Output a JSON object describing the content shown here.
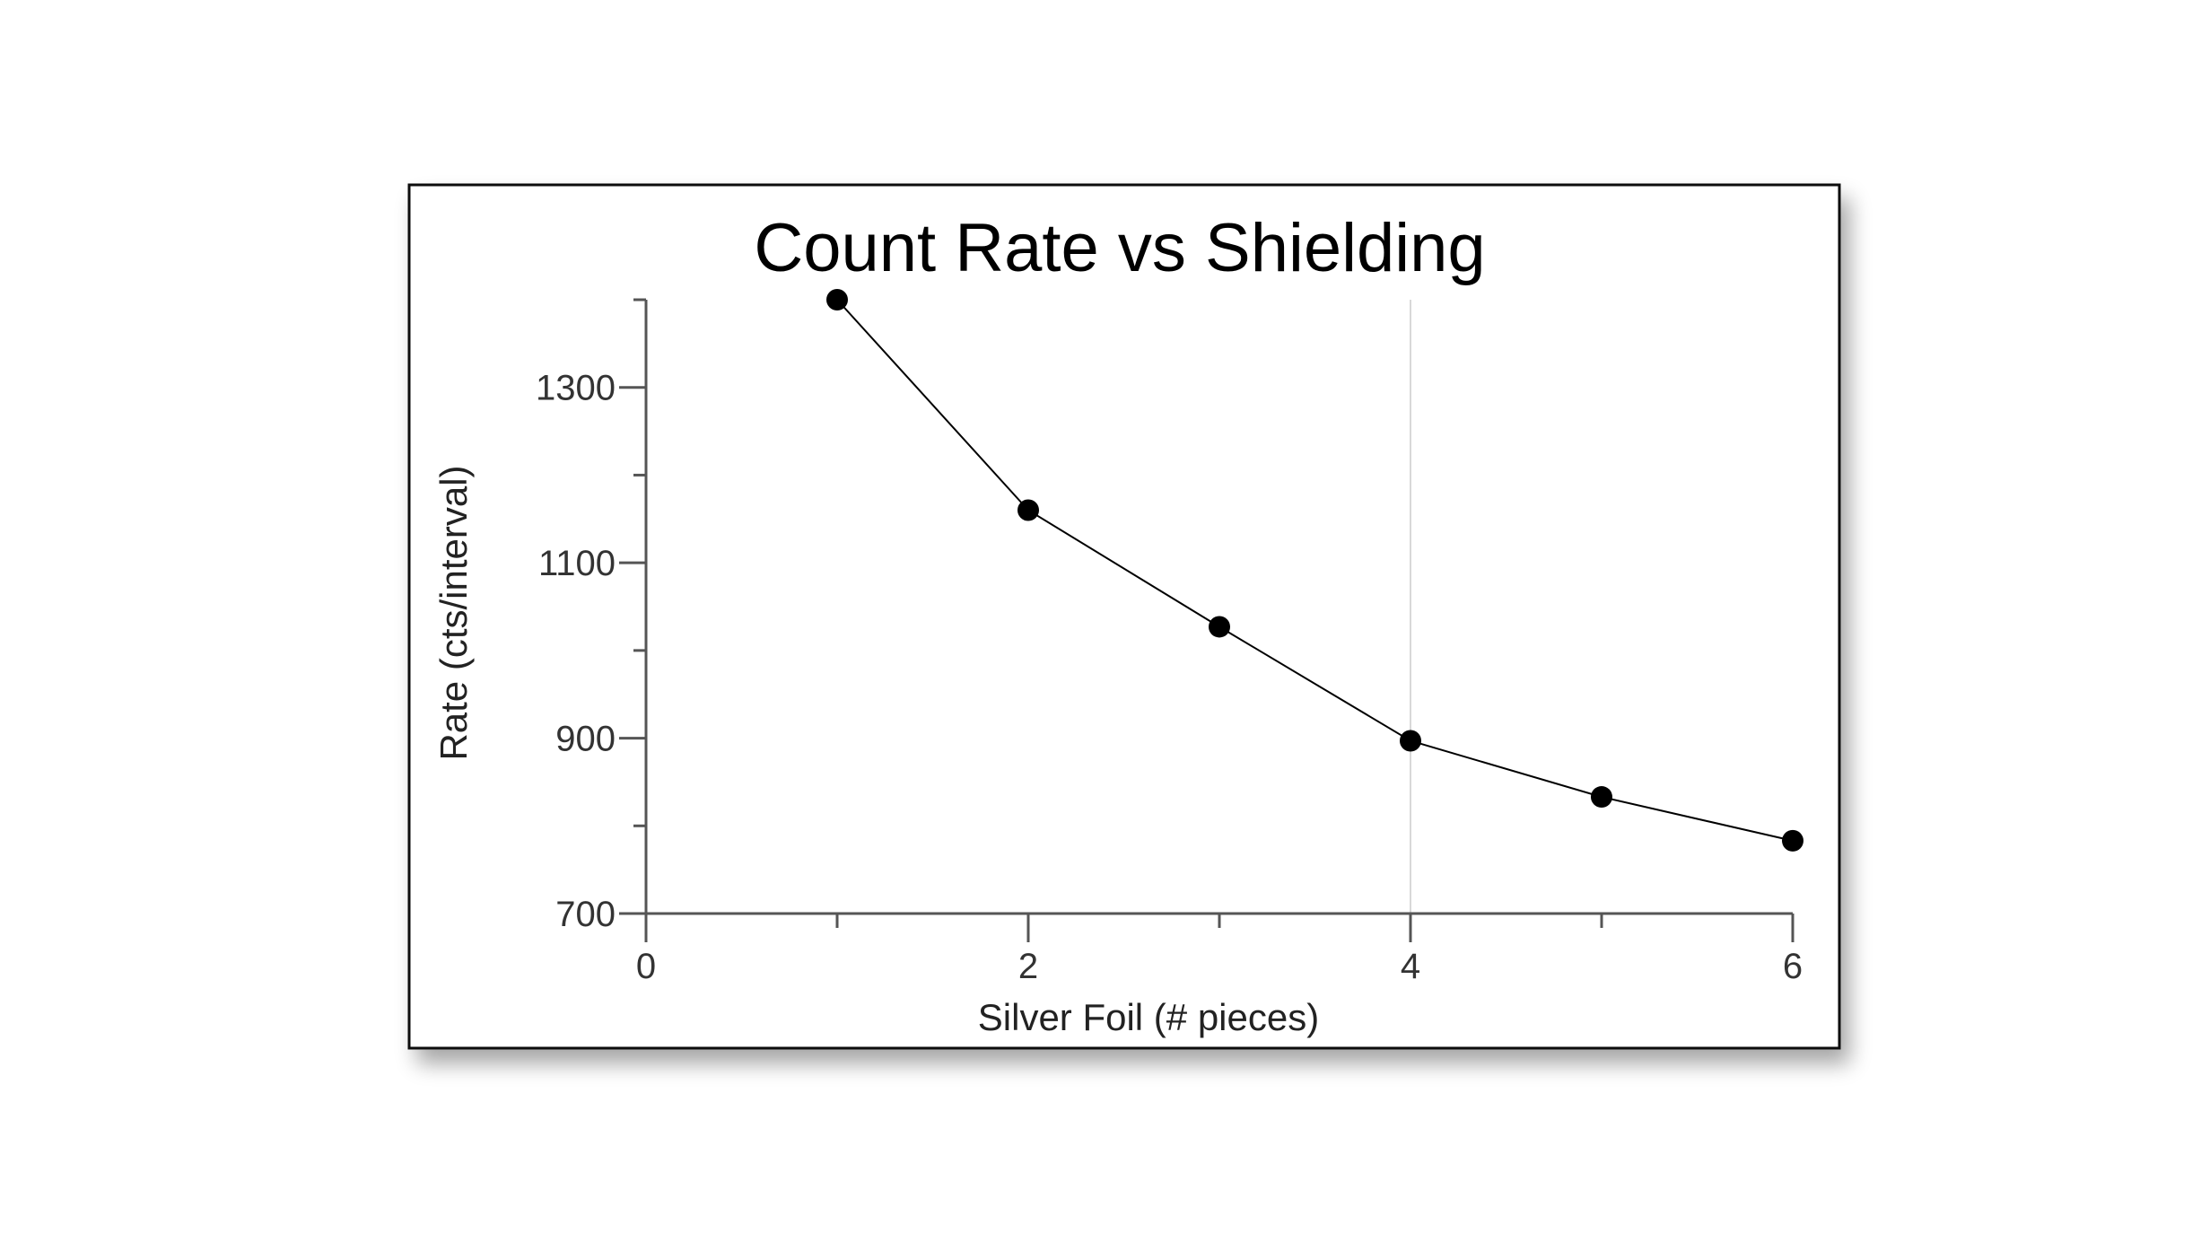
{
  "chart_data": {
    "type": "line",
    "title": "Count Rate vs Shielding",
    "xlabel": "Silver Foil (# pieces)",
    "ylabel": "Rate (cts/interval)",
    "xlim": [
      0,
      6
    ],
    "ylim": [
      700,
      1400
    ],
    "x_ticks": [
      0,
      2,
      4,
      6
    ],
    "x_minor_ticks": [
      1,
      3,
      5
    ],
    "y_ticks": [
      700,
      900,
      1100,
      1300
    ],
    "y_minor_ticks": [
      800,
      1000,
      1200,
      1400
    ],
    "grid": false,
    "reference_line_x": 4,
    "series": [
      {
        "x": [
          1,
          2,
          3,
          4,
          5,
          6
        ],
        "y": [
          1400,
          1160,
          1027,
          897,
          833,
          783
        ]
      }
    ],
    "colors": {
      "line": "#000000",
      "marker": "#000000",
      "axis": "#555555",
      "reference_line": "#d8d8d8"
    }
  }
}
